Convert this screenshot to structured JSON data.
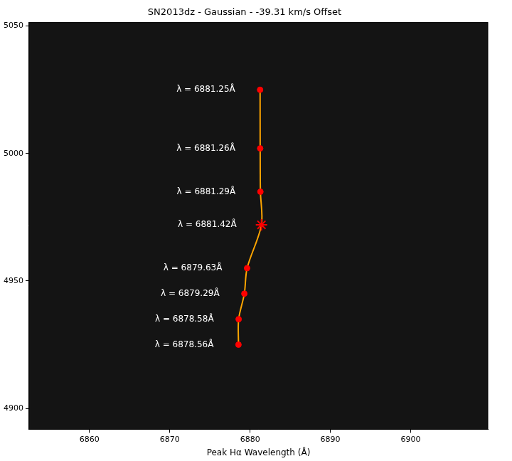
{
  "chart_data": {
    "type": "scatter",
    "title": "SN2013dz - Gaussian - -39.31 km/s Offset",
    "x_label": "Peak Hα Wavelength (Å)",
    "xlim": [
      6852.5,
      6909.6
    ],
    "xticks": [
      6860,
      6870,
      6880,
      6890,
      6900
    ],
    "ylim": [
      4891.8,
      5051.4
    ],
    "yticks": [
      4900,
      4950,
      5000,
      5050
    ],
    "grid": false,
    "series": [
      {
        "type": "line",
        "color": "orange",
        "marker": "circle",
        "line_style": "solid",
        "x": [
          6881.25,
          6881.26,
          6881.29,
          6881.42,
          6879.63,
          6879.29,
          6878.58,
          6878.56
        ],
        "values": [
          5025,
          5002,
          4985,
          4972,
          4955,
          4945,
          4935,
          4925
        ]
      },
      {
        "type": "scatter",
        "color": "red",
        "marker": "circle",
        "x": [
          6881.25,
          6881.26,
          6881.29,
          6879.63,
          6879.29,
          6878.58,
          6878.56
        ],
        "values": [
          5025,
          5002,
          4985,
          4955,
          4945,
          4935,
          4925
        ],
        "point_labels": [
          "λ = 6881.25Å",
          "λ = 6881.26Å",
          "λ = 6881.29Å",
          "λ = 6879.63Å",
          "λ = 6879.29Å",
          "λ = 6878.58Å",
          "λ = 6878.56Å"
        ]
      },
      {
        "type": "scatter",
        "color": "red",
        "marker": "star",
        "x": [
          6881.42
        ],
        "values": [
          4972
        ],
        "point_labels": [
          "λ = 6881.42Å"
        ]
      }
    ]
  }
}
